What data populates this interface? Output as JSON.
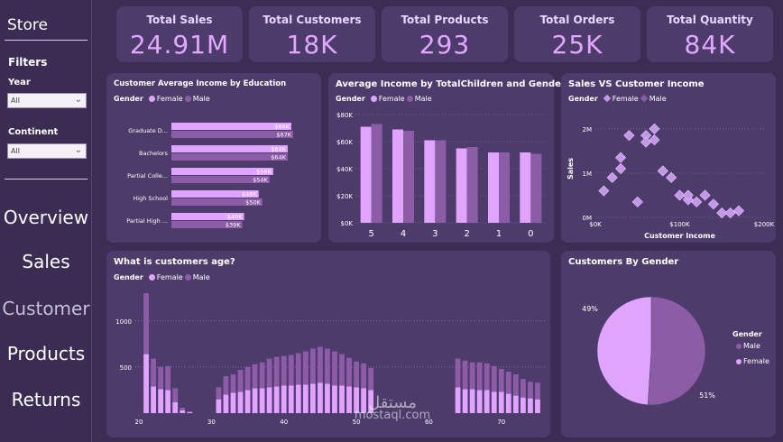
{
  "sidebar": {
    "title": "Store",
    "filters_title": "Filters",
    "year": {
      "label": "Year",
      "value": "All"
    },
    "continent": {
      "label": "Continent",
      "value": "All"
    },
    "nav": [
      "Overview",
      "Sales",
      "Customer",
      "Products",
      "Returns"
    ],
    "active": "Customer"
  },
  "kpis": [
    {
      "title": "Total Sales",
      "value": "24.91M"
    },
    {
      "title": "Total Customers",
      "value": "18K"
    },
    {
      "title": "Total Products",
      "value": "293"
    },
    {
      "title": "Total Orders",
      "value": "25K"
    },
    {
      "title": "Total Quantity",
      "value": "84K"
    }
  ],
  "legend": {
    "gender_label": "Gender",
    "female": "Female",
    "male": "Male"
  },
  "colors": {
    "female": "#e0a4ff",
    "male": "#8d5ca6",
    "panel": "#4d3c6b",
    "background": "#3c2d55"
  },
  "education_chart": {
    "title": "Customer Average Income by Education",
    "chart_data": {
      "type": "bar",
      "orientation": "horizontal",
      "categories": [
        "Graduate D...",
        "Bachelors",
        "Partial Colle...",
        "High School",
        "Partial High ..."
      ],
      "series": [
        {
          "name": "Female",
          "values": [
            66,
            64,
            56,
            48,
            40
          ],
          "labels": [
            "$66K",
            "$64K",
            "$56K",
            "$48K",
            "$40K"
          ]
        },
        {
          "name": "Male",
          "values": [
            67,
            64,
            54,
            50,
            39
          ],
          "labels": [
            "$67K",
            "$64K",
            "$54K",
            "$50K",
            "$39K"
          ]
        }
      ]
    }
  },
  "children_chart": {
    "title": "Average Income by TotalChildren and Gender",
    "chart_data": {
      "type": "bar",
      "categories": [
        "5",
        "4",
        "3",
        "2",
        "1",
        "0"
      ],
      "yticks": [
        "$0K",
        "$20K",
        "$40K",
        "$60K",
        "$80K"
      ],
      "ylim": [
        0,
        80
      ],
      "series": [
        {
          "name": "Female",
          "values": [
            71,
            69,
            61,
            55,
            52,
            52
          ]
        },
        {
          "name": "Male",
          "values": [
            73,
            68,
            61,
            56,
            52,
            51
          ]
        }
      ]
    }
  },
  "scatter_chart": {
    "title": "Sales VS Customer Income",
    "chart_data": {
      "type": "scatter",
      "xlabel": "Customer Income",
      "ylabel": "Sales",
      "xticks": [
        "$0K",
        "$100K",
        "$200K"
      ],
      "yticks": [
        "0M",
        "1M",
        "2M"
      ],
      "xlim": [
        0,
        200
      ],
      "ylim": [
        0,
        2.2
      ],
      "points": [
        {
          "x": 10,
          "y": 0.6
        },
        {
          "x": 20,
          "y": 0.9
        },
        {
          "x": 30,
          "y": 1.1
        },
        {
          "x": 30,
          "y": 1.35
        },
        {
          "x": 40,
          "y": 1.85
        },
        {
          "x": 50,
          "y": 0.35
        },
        {
          "x": 60,
          "y": 1.85
        },
        {
          "x": 60,
          "y": 1.7
        },
        {
          "x": 70,
          "y": 2.0
        },
        {
          "x": 70,
          "y": 1.75
        },
        {
          "x": 80,
          "y": 1.05
        },
        {
          "x": 90,
          "y": 0.9
        },
        {
          "x": 100,
          "y": 0.5
        },
        {
          "x": 110,
          "y": 0.4
        },
        {
          "x": 110,
          "y": 0.5
        },
        {
          "x": 120,
          "y": 0.35
        },
        {
          "x": 130,
          "y": 0.5
        },
        {
          "x": 140,
          "y": 0.3
        },
        {
          "x": 150,
          "y": 0.1
        },
        {
          "x": 160,
          "y": 0.1
        },
        {
          "x": 170,
          "y": 0.15
        }
      ]
    }
  },
  "age_chart": {
    "title": "What is customers age?",
    "chart_data": {
      "type": "bar",
      "stacked": true,
      "xlabel": "",
      "xticks": [
        "20",
        "30",
        "40",
        "50",
        "60",
        "70"
      ],
      "yticks": [
        "500",
        "1000"
      ],
      "xlim": [
        19.5,
        76
      ],
      "ylim": [
        0,
        1350
      ],
      "ages": [
        21,
        22,
        23,
        24,
        25,
        26,
        27,
        31,
        32,
        33,
        34,
        35,
        36,
        37,
        38,
        39,
        40,
        41,
        42,
        43,
        44,
        45,
        46,
        47,
        48,
        49,
        50,
        51,
        52,
        64,
        65,
        66,
        67,
        68,
        69,
        70,
        71,
        72,
        73,
        74,
        75
      ],
      "series": [
        {
          "name": "Female",
          "values": [
            640,
            290,
            260,
            250,
            120,
            30,
            10,
            150,
            200,
            220,
            230,
            250,
            270,
            270,
            280,
            290,
            300,
            300,
            310,
            310,
            320,
            330,
            320,
            300,
            300,
            290,
            280,
            270,
            250,
            280,
            260,
            260,
            250,
            250,
            230,
            230,
            210,
            190,
            170,
            160,
            150
          ]
        },
        {
          "name": "Male",
          "values": [
            660,
            300,
            240,
            260,
            150,
            30,
            10,
            130,
            200,
            200,
            240,
            250,
            260,
            280,
            310,
            320,
            320,
            330,
            340,
            360,
            380,
            390,
            380,
            370,
            340,
            310,
            280,
            270,
            240,
            310,
            310,
            290,
            300,
            290,
            280,
            250,
            240,
            230,
            200,
            180,
            180
          ]
        }
      ]
    }
  },
  "gender_pie": {
    "title": "Customers By Gender",
    "chart_data": {
      "type": "pie",
      "slices": [
        {
          "name": "Male",
          "value": 51,
          "label": "51%"
        },
        {
          "name": "Female",
          "value": 49,
          "label": "49%"
        }
      ],
      "legend_title": "Gender"
    }
  },
  "watermark": {
    "line1": "مستقل",
    "line2": "mostaql.com"
  }
}
